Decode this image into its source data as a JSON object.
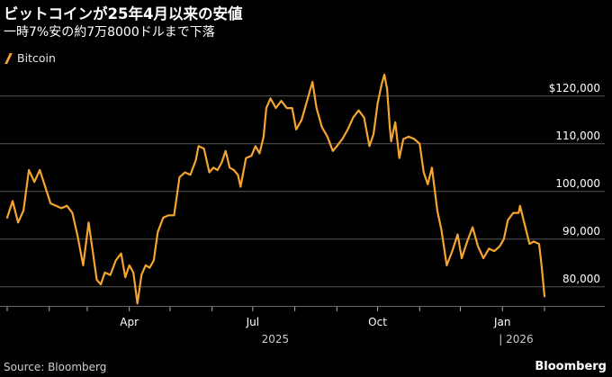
{
  "header": {
    "title": "ビットコインが25年4月以来の安値",
    "subtitle": "一時7%安の約7万8000ドルまで下落"
  },
  "footer": {
    "source": "Source: Bloomberg",
    "brand": "Bloomberg"
  },
  "colors": {
    "background": "#000000",
    "series": "#f5a52f",
    "grid": "#555555",
    "text": "#ffffff"
  },
  "chart_data": {
    "type": "line",
    "series": [
      {
        "name": "Bitcoin",
        "color": "#f5a52f",
        "x": [
          "2025-01-01",
          "2025-01-05",
          "2025-01-09",
          "2025-01-13",
          "2025-01-17",
          "2025-01-21",
          "2025-01-25",
          "2025-01-29",
          "2025-02-02",
          "2025-02-06",
          "2025-02-10",
          "2025-02-14",
          "2025-02-18",
          "2025-02-22",
          "2025-02-26",
          "2025-03-02",
          "2025-03-05",
          "2025-03-08",
          "2025-03-11",
          "2025-03-14",
          "2025-03-18",
          "2025-03-22",
          "2025-03-26",
          "2025-03-29",
          "2025-04-01",
          "2025-04-04",
          "2025-04-07",
          "2025-04-10",
          "2025-04-13",
          "2025-04-16",
          "2025-04-19",
          "2025-04-22",
          "2025-04-26",
          "2025-04-30",
          "2025-05-04",
          "2025-05-08",
          "2025-05-12",
          "2025-05-16",
          "2025-05-20",
          "2025-05-22",
          "2025-05-26",
          "2025-05-30",
          "2025-06-02",
          "2025-06-05",
          "2025-06-08",
          "2025-06-11",
          "2025-06-14",
          "2025-06-17",
          "2025-06-20",
          "2025-06-22",
          "2025-06-26",
          "2025-06-30",
          "2025-07-03",
          "2025-07-06",
          "2025-07-09",
          "2025-07-11",
          "2025-07-14",
          "2025-07-18",
          "2025-07-22",
          "2025-07-26",
          "2025-07-30",
          "2025-08-02",
          "2025-08-06",
          "2025-08-10",
          "2025-08-14",
          "2025-08-17",
          "2025-08-21",
          "2025-08-25",
          "2025-08-29",
          "2025-09-01",
          "2025-09-05",
          "2025-09-09",
          "2025-09-13",
          "2025-09-17",
          "2025-09-21",
          "2025-09-25",
          "2025-09-28",
          "2025-10-01",
          "2025-10-04",
          "2025-10-06",
          "2025-10-08",
          "2025-10-10",
          "2025-10-11",
          "2025-10-14",
          "2025-10-17",
          "2025-10-20",
          "2025-10-24",
          "2025-10-28",
          "2025-11-01",
          "2025-11-04",
          "2025-11-07",
          "2025-11-10",
          "2025-11-14",
          "2025-11-17",
          "2025-11-21",
          "2025-11-25",
          "2025-11-29",
          "2025-12-02",
          "2025-12-06",
          "2025-12-10",
          "2025-12-14",
          "2025-12-18",
          "2025-12-22",
          "2025-12-26",
          "2025-12-30",
          "2026-01-02",
          "2026-01-05",
          "2026-01-09",
          "2026-01-13",
          "2026-01-14",
          "2026-01-17",
          "2026-01-21",
          "2026-01-24",
          "2026-01-28",
          "2026-01-30",
          "2026-02-01"
        ],
        "values": [
          94500,
          98000,
          93500,
          96000,
          104500,
          102000,
          104500,
          101000,
          97500,
          97000,
          96500,
          97000,
          95500,
          90500,
          84500,
          93500,
          87500,
          81500,
          80500,
          83000,
          82500,
          85500,
          87000,
          82000,
          84500,
          83000,
          76500,
          82500,
          84500,
          84000,
          85500,
          91500,
          94500,
          95000,
          95000,
          103000,
          104000,
          103500,
          106500,
          109500,
          109000,
          104000,
          105000,
          104500,
          106000,
          108500,
          105000,
          104500,
          103500,
          101000,
          107000,
          107500,
          109500,
          108000,
          111500,
          117500,
          119500,
          117500,
          119000,
          117500,
          117500,
          113000,
          115000,
          119000,
          123000,
          117500,
          113500,
          111500,
          108500,
          109500,
          111000,
          113000,
          115500,
          117000,
          115500,
          109500,
          112000,
          118500,
          122500,
          124500,
          121500,
          113500,
          110500,
          114500,
          107000,
          111000,
          111500,
          111000,
          110000,
          104000,
          101500,
          105000,
          96000,
          92000,
          84500,
          87500,
          91000,
          86000,
          89500,
          92500,
          88500,
          86000,
          88000,
          87500,
          88500,
          90000,
          94000,
          95500,
          95500,
          97000,
          93500,
          89000,
          89500,
          89000,
          84000,
          78000
        ]
      }
    ],
    "xlim": [
      "2025-01-01",
      "2026-02-03"
    ],
    "ylim": [
      76000,
      126000
    ],
    "y_ticks": [
      80000,
      90000,
      100000,
      110000,
      120000
    ],
    "y_tick_labels": [
      "80,000",
      "90,000",
      "100,000",
      "110,000",
      "$120,000"
    ],
    "x_tick_labels": [
      {
        "label": "Apr",
        "date": "2025-04-01"
      },
      {
        "label": "Jul",
        "date": "2025-07-01"
      },
      {
        "label": "Oct",
        "date": "2025-10-01"
      },
      {
        "label": "Jan",
        "date": "2026-01-01"
      }
    ],
    "year_labels": [
      {
        "label": "2025",
        "date": "2025-07-01"
      },
      {
        "label": "| 2026",
        "date": "2026-01-01"
      }
    ],
    "minor_ticks": [
      "2025-01-01",
      "2025-02-01",
      "2025-03-01",
      "2025-04-01",
      "2025-05-01",
      "2025-06-01",
      "2025-07-01",
      "2025-08-01",
      "2025-09-01",
      "2025-10-01",
      "2025-11-01",
      "2025-12-01",
      "2026-01-01",
      "2026-02-01"
    ],
    "grid": true,
    "legend_position": "top-left"
  }
}
